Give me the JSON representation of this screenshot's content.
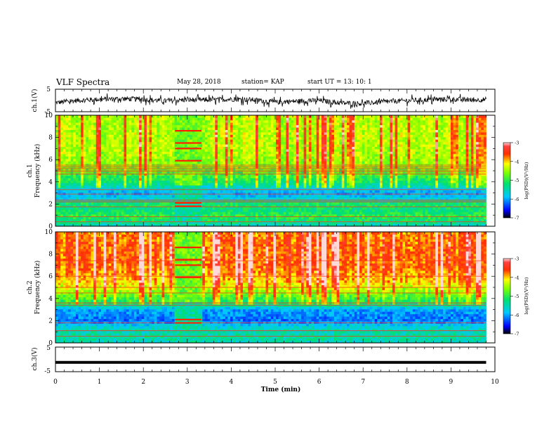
{
  "header": {
    "title": "VLF Spectra",
    "date": "May 28, 2018",
    "station": "station= KAP",
    "start_time": "start  UT  =    13: 10: 1"
  },
  "chart_data": [
    {
      "type": "line",
      "name": "ch1-waveform",
      "ylabel": "ch.1(V)",
      "ylim": [
        -5,
        5
      ],
      "yticks": [
        "5",
        "-5"
      ],
      "xlim": [
        0,
        10
      ],
      "x_min": [
        0,
        0.5,
        1.0,
        1.5,
        2.0,
        2.5,
        3.0,
        3.5,
        4.0,
        4.5,
        5.0,
        5.5,
        6.0,
        6.5,
        7.0,
        7.5,
        8.0,
        8.5,
        9.0,
        9.5,
        9.8
      ],
      "envelope_center_V": [
        -1.0,
        0.0,
        0.5,
        0.8,
        0.5,
        -0.2,
        0.3,
        0.2,
        0.6,
        0.3,
        -0.8,
        -0.3,
        0.0,
        -1.2,
        -1.3,
        -0.6,
        0.0,
        0.3,
        0.6,
        0.2,
        0.4
      ],
      "amplitude_V": 2.2
    },
    {
      "type": "heatmap",
      "name": "ch1-spectrogram",
      "ylabel": "ch.1\nFrequency (kHz)",
      "ylim": [
        0,
        10
      ],
      "yticks": [
        "0",
        "2",
        "4",
        "6",
        "8",
        "10"
      ],
      "xlim": [
        0,
        10
      ],
      "data_end_min": 9.8,
      "gap_min": [
        2.72,
        3.32
      ],
      "colorbar": {
        "min": -7,
        "max": -3,
        "ticks": [
          "-3",
          "-4",
          "-5",
          "-6",
          "-7"
        ],
        "label": "log(PSD)(V²/Hz)"
      },
      "band_profile_kHz": [
        [
          0.0,
          -5.6
        ],
        [
          0.5,
          -5.2
        ],
        [
          1.0,
          -5.0
        ],
        [
          1.5,
          -5.3
        ],
        [
          2.0,
          -5.1
        ],
        [
          2.5,
          -5.7
        ],
        [
          3.0,
          -6.0
        ],
        [
          3.5,
          -5.6
        ],
        [
          4.0,
          -5.2
        ],
        [
          4.5,
          -5.0
        ],
        [
          5.0,
          -4.8
        ],
        [
          5.5,
          -4.6
        ],
        [
          6.0,
          -4.5
        ],
        [
          7.0,
          -4.4
        ],
        [
          8.0,
          -4.4
        ],
        [
          9.0,
          -4.4
        ],
        [
          10.0,
          -4.4
        ]
      ],
      "line_freqs_kHz": [
        0.4,
        0.85,
        1.75,
        2.2,
        2.35,
        2.9,
        3.3,
        4.7,
        4.9,
        5.05,
        5.2,
        5.35,
        5.5
      ]
    },
    {
      "type": "heatmap",
      "name": "ch2-spectrogram",
      "ylabel": "ch.2\nFrequency (kHz)",
      "ylim": [
        0,
        10
      ],
      "yticks": [
        "0",
        "2",
        "4",
        "6",
        "8",
        "10"
      ],
      "xlim": [
        0,
        10
      ],
      "data_end_min": 9.8,
      "gap_min": [
        2.72,
        3.32
      ],
      "colorbar": {
        "min": -7,
        "max": -3,
        "ticks": [
          "-3",
          "-4",
          "-5",
          "-6",
          "-7"
        ],
        "label": "log(PSD)(V²/Hz)"
      },
      "band_profile_kHz": [
        [
          0.0,
          -5.6
        ],
        [
          0.5,
          -5.4
        ],
        [
          1.0,
          -5.5
        ],
        [
          1.5,
          -5.7
        ],
        [
          2.0,
          -6.2
        ],
        [
          2.5,
          -6.1
        ],
        [
          3.0,
          -6.0
        ],
        [
          3.5,
          -5.2
        ],
        [
          4.0,
          -4.9
        ],
        [
          4.5,
          -4.6
        ],
        [
          5.0,
          -4.3
        ],
        [
          5.5,
          -4.0
        ],
        [
          6.0,
          -3.9
        ],
        [
          7.0,
          -3.7
        ],
        [
          8.0,
          -3.7
        ],
        [
          9.0,
          -3.7
        ],
        [
          10.0,
          -3.8
        ]
      ],
      "line_freqs_kHz": [
        0.6,
        1.1,
        1.8,
        3.4,
        3.6,
        4.5,
        5.0,
        6.0,
        7.4
      ]
    },
    {
      "type": "line",
      "name": "ch3-waveform",
      "ylabel": "ch.3(V)",
      "ylim": [
        -5,
        5
      ],
      "yticks": [
        "5",
        "-5"
      ],
      "xlim": [
        0,
        10
      ],
      "xticks": [
        "0",
        "1",
        "2",
        "3",
        "4",
        "5",
        "6",
        "7",
        "8",
        "9",
        "10"
      ],
      "xlabel": "Time (min)",
      "x_min": [
        0,
        9.8
      ],
      "y_V": [
        -1.2,
        -1.2
      ]
    }
  ]
}
